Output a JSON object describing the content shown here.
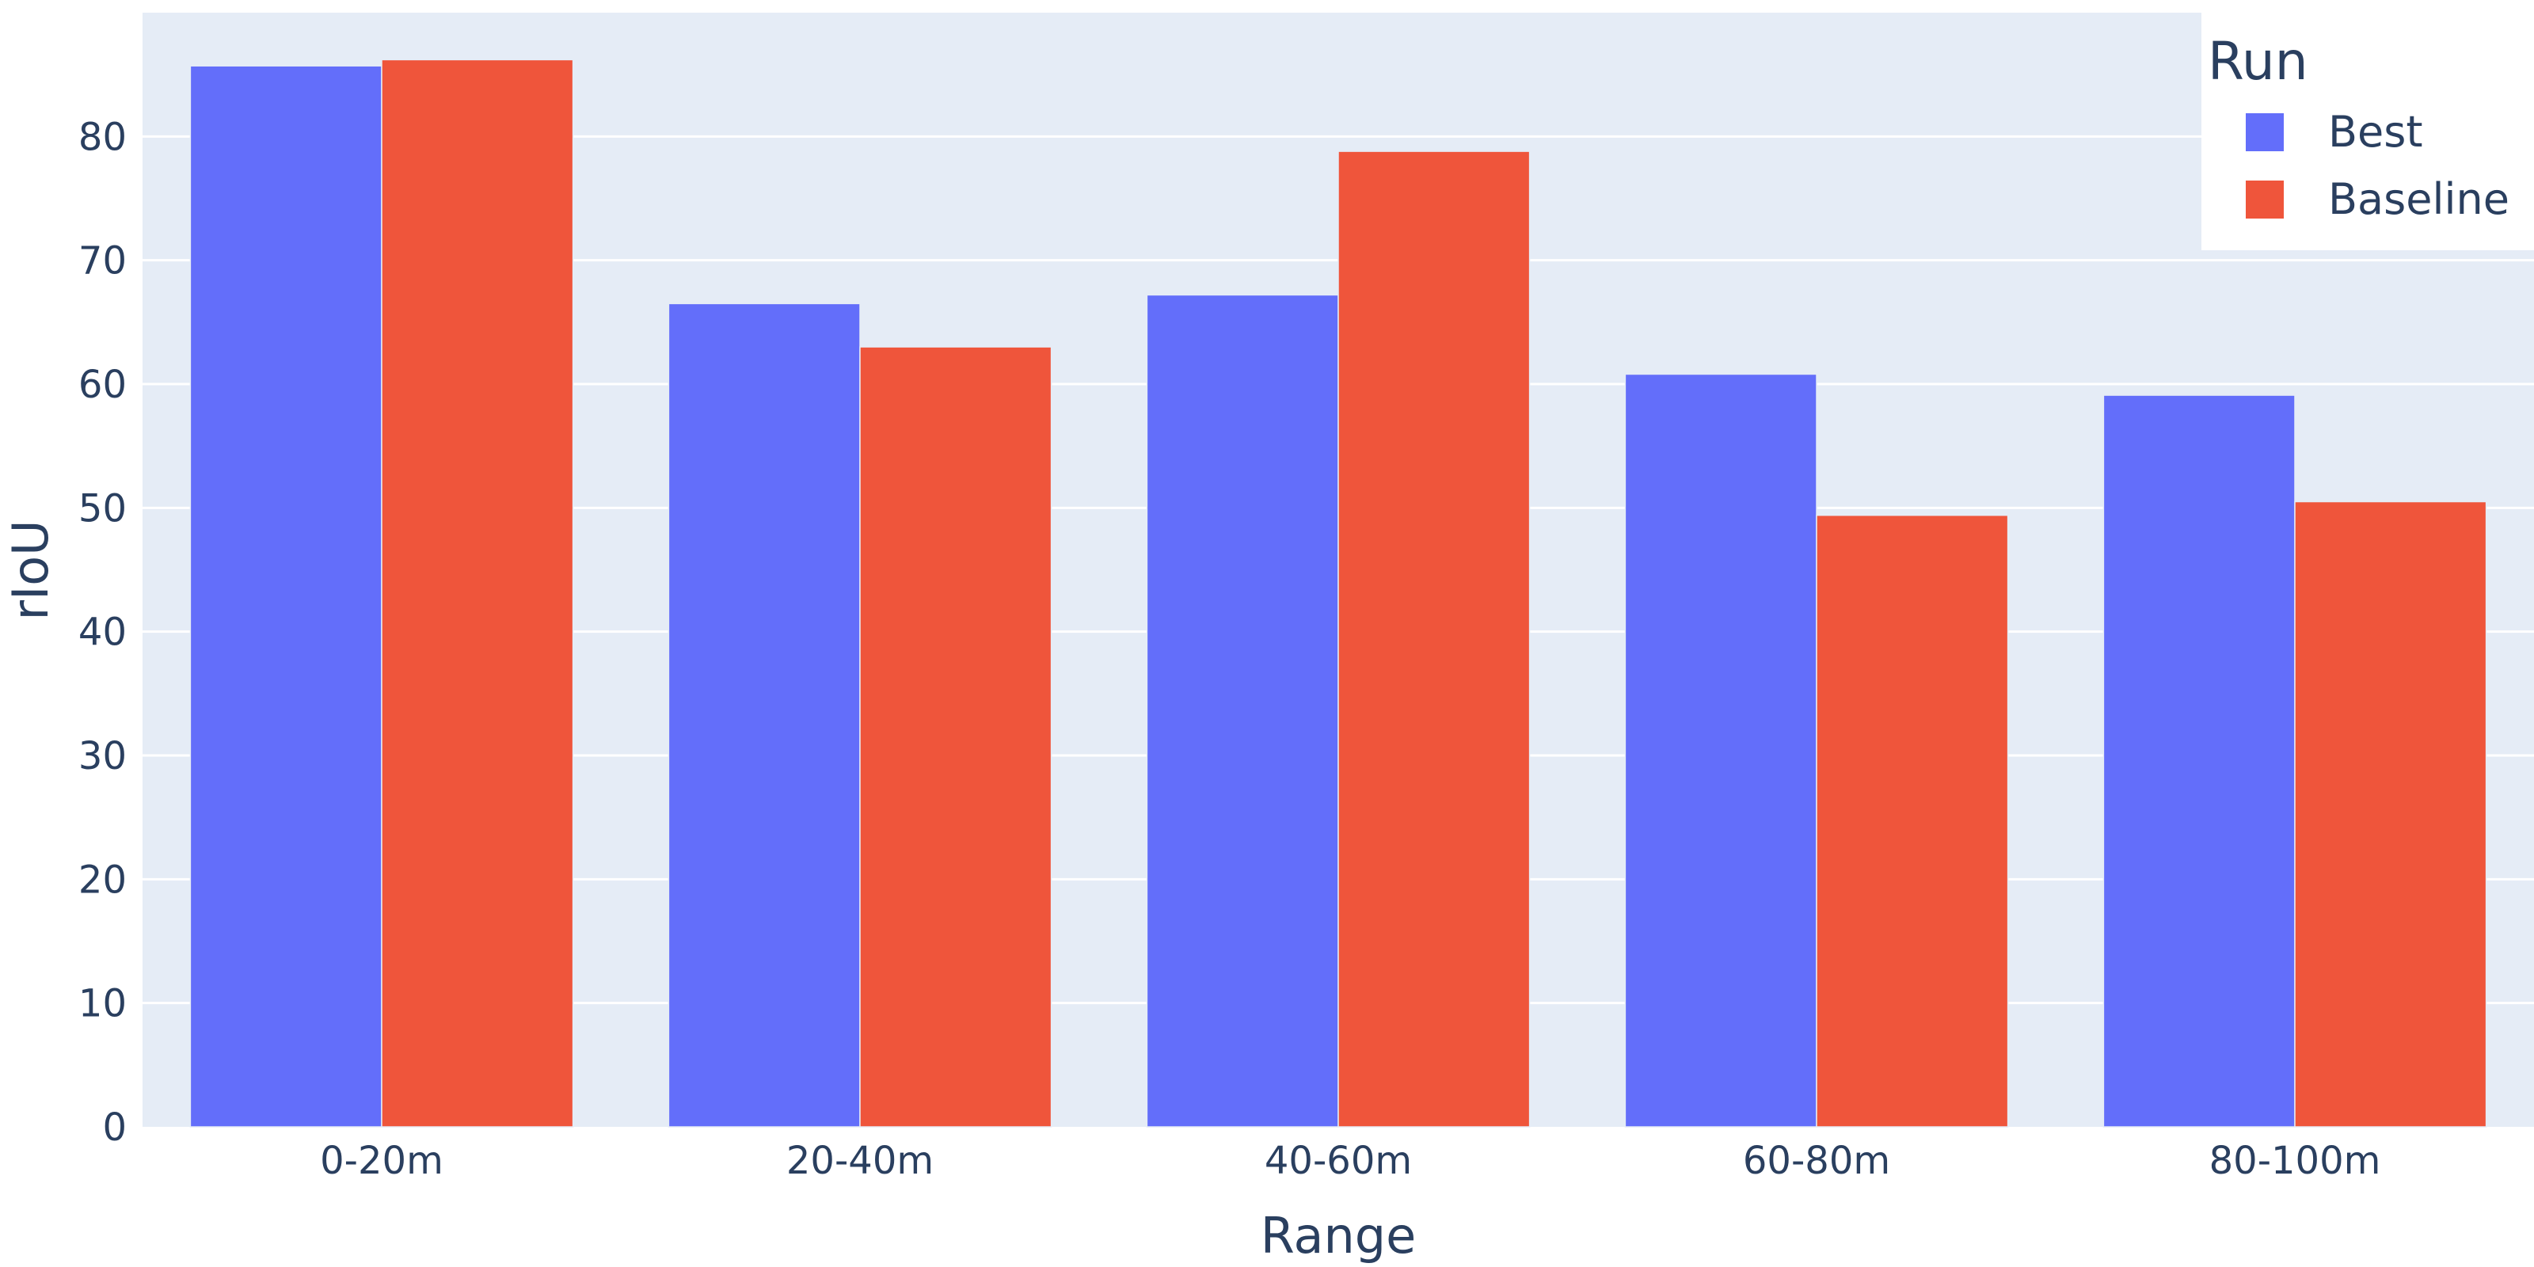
{
  "chart_data": {
    "type": "bar",
    "categories": [
      "0-20m",
      "20-40m",
      "40-60m",
      "60-80m",
      "80-100m"
    ],
    "series": [
      {
        "name": "Best",
        "color": "#636efa",
        "values": [
          85.7,
          66.5,
          67.2,
          60.8,
          59.1
        ]
      },
      {
        "name": "Baseline",
        "color": "#ef553b",
        "values": [
          86.2,
          63.0,
          78.8,
          49.4,
          50.5
        ]
      }
    ],
    "xlabel": "Range",
    "ylabel": "rIoU",
    "ylim": [
      0,
      90
    ],
    "yticks": [
      0,
      10,
      20,
      30,
      40,
      50,
      60,
      70,
      80
    ],
    "grid": true,
    "plot_background": "#e5ecf6",
    "grid_color": "#ffffff",
    "legend": {
      "title": "Run",
      "position": "top-right"
    }
  }
}
